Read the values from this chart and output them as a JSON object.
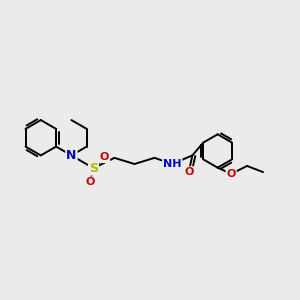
{
  "bg_color": "#ebebeb",
  "bond_color": "#000000",
  "bond_width": 1.4,
  "atom_colors": {
    "N": "#0000cc",
    "O": "#cc0000",
    "S": "#b8b800",
    "C": "#000000"
  },
  "figsize": [
    3.0,
    3.0
  ],
  "dpi": 100,
  "xlim": [
    0,
    12
  ],
  "ylim": [
    0,
    10
  ]
}
